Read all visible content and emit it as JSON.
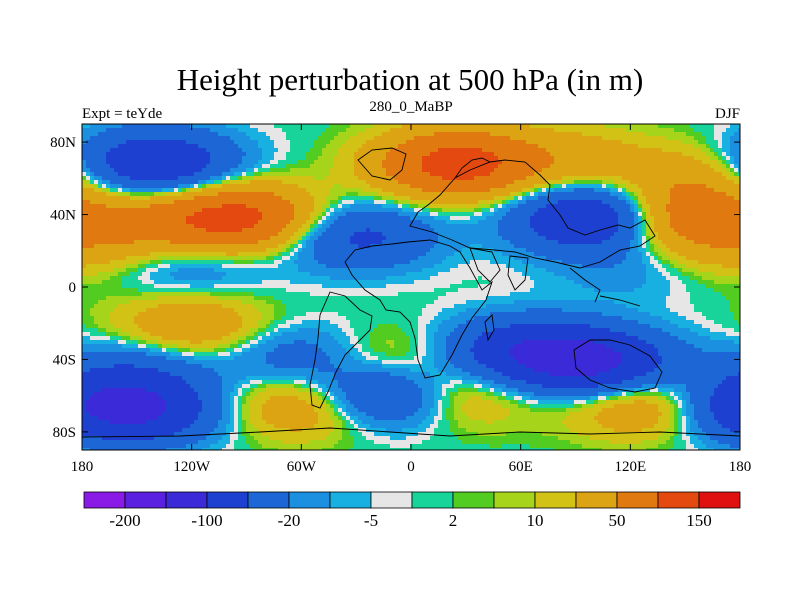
{
  "chart_data": {
    "type": "heatmap",
    "title": "Height perturbation at 500 hPa (in m)",
    "left_string": "Expt = teYde",
    "center_string": "280_0_MaBP",
    "right_string": "DJF",
    "x_ticks": [
      {
        "value": -180,
        "label": "180"
      },
      {
        "value": -120,
        "label": "120W"
      },
      {
        "value": -60,
        "label": "60W"
      },
      {
        "value": 0,
        "label": "0"
      },
      {
        "value": 60,
        "label": "60E"
      },
      {
        "value": 120,
        "label": "120E"
      },
      {
        "value": 180,
        "label": "180"
      }
    ],
    "y_ticks": [
      {
        "value": 80,
        "label": "80N"
      },
      {
        "value": 40,
        "label": "40N"
      },
      {
        "value": 0,
        "label": "0"
      },
      {
        "value": -40,
        "label": "40S"
      },
      {
        "value": -80,
        "label": "80S"
      }
    ],
    "xlim": [
      -180,
      180
    ],
    "ylim": [
      -90,
      90
    ],
    "levels": [
      -200,
      -150,
      -100,
      -50,
      -20,
      -10,
      -5,
      -2,
      2,
      5,
      10,
      20,
      50,
      100,
      150,
      200
    ],
    "colorbar_labels": [
      {
        "level": -200,
        "label": "-200"
      },
      {
        "level": -100,
        "label": "-100"
      },
      {
        "level": -20,
        "label": "-20"
      },
      {
        "level": -5,
        "label": "-5"
      },
      {
        "level": 2,
        "label": "2"
      },
      {
        "level": 10,
        "label": "10"
      },
      {
        "level": 50,
        "label": "50"
      },
      {
        "level": 150,
        "label": "150"
      }
    ],
    "colors": [
      "#8a1ae6",
      "#5a22e0",
      "#3a2ad8",
      "#1e40d0",
      "#1c66d6",
      "#1c90e0",
      "#17b0e0",
      "#e6e6e6",
      "#18d49a",
      "#52cc20",
      "#a6d41a",
      "#d2c216",
      "#dca412",
      "#e07a10",
      "#e44a10",
      "#e01010"
    ],
    "anomaly_centers": [
      {
        "lon": -140,
        "lat": 68,
        "value": -95
      },
      {
        "lon": -95,
        "lat": 38,
        "value": 120
      },
      {
        "lon": -150,
        "lat": 35,
        "value": 45
      },
      {
        "lon": 25,
        "lat": 68,
        "value": 125
      },
      {
        "lon": 90,
        "lat": 70,
        "value": 30
      },
      {
        "lon": 100,
        "lat": 38,
        "value": -110
      },
      {
        "lon": 155,
        "lat": 60,
        "value": 35
      },
      {
        "lon": 145,
        "lat": 38,
        "value": 80
      },
      {
        "lon": -30,
        "lat": 28,
        "value": -60
      },
      {
        "lon": -120,
        "lat": 12,
        "value": -25
      },
      {
        "lon": 120,
        "lat": 10,
        "value": -15
      },
      {
        "lon": -120,
        "lat": -22,
        "value": 45
      },
      {
        "lon": -150,
        "lat": -45,
        "value": -35
      },
      {
        "lon": -150,
        "lat": -68,
        "value": -100
      },
      {
        "lon": -60,
        "lat": -38,
        "value": -40
      },
      {
        "lon": -55,
        "lat": -65,
        "value": 55
      },
      {
        "lon": -15,
        "lat": -60,
        "value": -90
      },
      {
        "lon": 20,
        "lat": -60,
        "value": 45
      },
      {
        "lon": -20,
        "lat": -40,
        "value": 30
      },
      {
        "lon": 60,
        "lat": -35,
        "value": -75
      },
      {
        "lon": 100,
        "lat": -42,
        "value": -110
      },
      {
        "lon": 130,
        "lat": -65,
        "value": 55
      },
      {
        "lon": 172,
        "lat": -65,
        "value": -45
      },
      {
        "lon": 175,
        "lat": 20,
        "value": 20
      }
    ],
    "grid": false,
    "colorbar_position": "bottom"
  }
}
